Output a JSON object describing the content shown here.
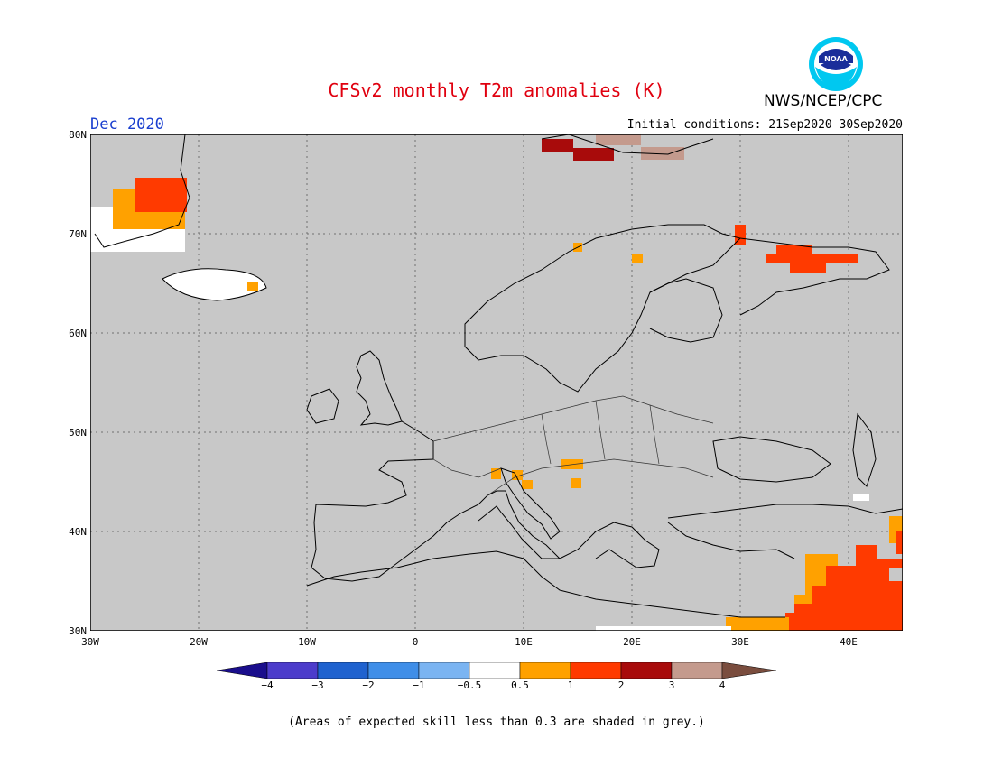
{
  "header": {
    "title": "CFSv2 monthly T2m anomalies (K)",
    "agency": "NWS/NCEP/CPC",
    "logo_text": "NOAA",
    "month": "Dec 2020",
    "initial_conditions": "Initial conditions: 21Sep2020–30Sep2020"
  },
  "colors": {
    "title": "#e0000f",
    "month": "#1a3fcf",
    "map_background": "#c8c8c8",
    "land_outline": "#000000"
  },
  "axes": {
    "lat_labels": [
      "80N",
      "70N",
      "60N",
      "50N",
      "40N",
      "30N"
    ],
    "lon_labels": [
      "30W",
      "20W",
      "10W",
      "0",
      "10E",
      "20E",
      "30E",
      "40E"
    ],
    "lat_range": [
      30,
      80
    ],
    "lon_range": [
      -30,
      45
    ]
  },
  "colorbar": {
    "labels": [
      "−4",
      "−3",
      "−2",
      "−1",
      "−0.5",
      "0.5",
      "1",
      "2",
      "3",
      "4"
    ],
    "colors": [
      "#1a0e8c",
      "#4c3ccb",
      "#1f62cf",
      "#3f8ee8",
      "#7ab4f2",
      "#ffffff",
      "#ffa100",
      "#ff3a00",
      "#a80b0b",
      "#c49a8d",
      "#7a4d3e"
    ]
  },
  "footnote": "(Areas of expected skill less than 0.3 are shaded in grey.)"
}
